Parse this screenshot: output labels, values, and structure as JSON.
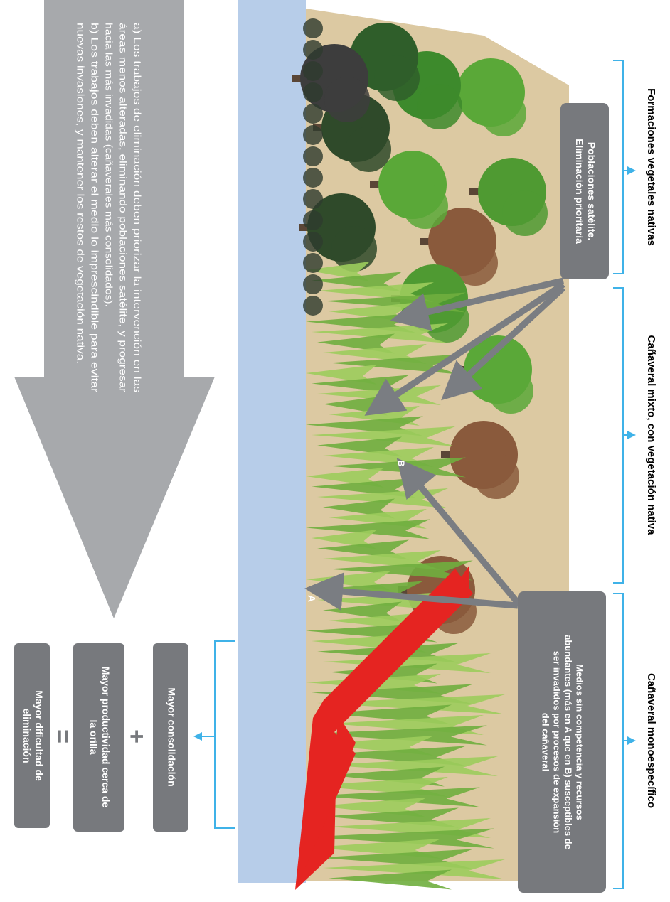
{
  "zones": [
    "Formaciones vegetales nativas",
    "Cañaveral mixto, con vegetación nativa",
    "Cañaveral monoespecífico"
  ],
  "callouts": [
    {
      "lines": [
        "Poblaciones satélite.",
        "Eliminación prioritaria"
      ]
    },
    {
      "lines": [
        "Medios sin competencia y recursos",
        "abundantes (más en A que en B) susceptibles de",
        "ser invadidos por procesos de expansión",
        "del cañaveral"
      ]
    }
  ],
  "points": [
    "A",
    "B"
  ],
  "guidance": [
    "a) Los trabajos de eliminación deben priorizar la intervención en las",
    "áreas menos alteradas, eliminando poblaciones satélite, y progresar",
    "hacia las más invadidas (cañaverales más consolidados).",
    "b) Los trabajos deben alterar el medio lo imprescindible para evitar",
    "nuevas invasiones, y mantener los restos de vegetación nativa."
  ],
  "equation": {
    "first": [
      "Mayor consolidación"
    ],
    "plus": "+",
    "second": [
      "Mayor productividad cerca de",
      "la orilla"
    ],
    "equals": "=",
    "result": [
      "Mayor dificultad de",
      "eliminación"
    ]
  }
}
